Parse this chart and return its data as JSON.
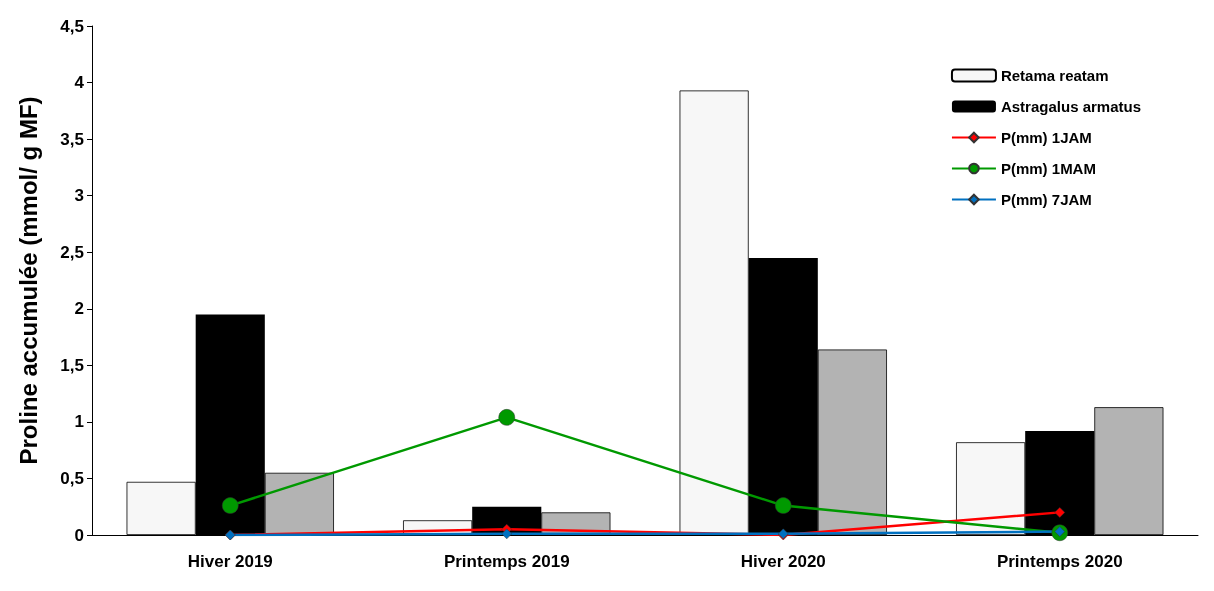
{
  "chart_data": {
    "type": "bar",
    "ylabel": "Proline accumulée (mmol/ g MF)",
    "categories": [
      "Hiver 2019",
      "Printemps 2019",
      "Hiver 2020",
      "Printemps 2020"
    ],
    "series": [
      {
        "name": "Retama reatam",
        "color": "#f7f7f7",
        "values": [
          0.47,
          0.13,
          3.93,
          0.82
        ]
      },
      {
        "name": "Astragalus armatus",
        "color": "#000000",
        "values": [
          1.95,
          0.25,
          2.45,
          0.92
        ]
      },
      {
        "color": "#b3b3b3",
        "values": [
          0.55,
          0.2,
          1.64,
          1.13
        ]
      },
      {
        "name": "P(mm) 1JAM",
        "type": "line",
        "marker": "diamond",
        "color": "#ff0000",
        "values": [
          0,
          0.05,
          0,
          0.2
        ]
      },
      {
        "name": "P(mm) 1MAM",
        "type": "line",
        "marker": "circle",
        "color": "#009900",
        "values": [
          0.26,
          1.04,
          0.26,
          0.02
        ]
      },
      {
        "name": "P(mm) 7JAM",
        "type": "line",
        "marker": "diamond",
        "color": "#0070c0",
        "values": [
          0,
          0.01,
          0.01,
          0.03
        ]
      }
    ],
    "ylim": [
      0,
      4.5
    ],
    "yticks": [
      0,
      {
        "value": 0.5,
        "label": "0,5"
      },
      1,
      {
        "value": 1.5,
        "label": "1,5"
      },
      2,
      {
        "value": 2.5,
        "label": "2,5"
      },
      3,
      {
        "value": 3.5,
        "label": "3,5"
      },
      4,
      {
        "value": 4.5,
        "label": "4,5"
      }
    ],
    "grid": false,
    "legend": "top right"
  }
}
